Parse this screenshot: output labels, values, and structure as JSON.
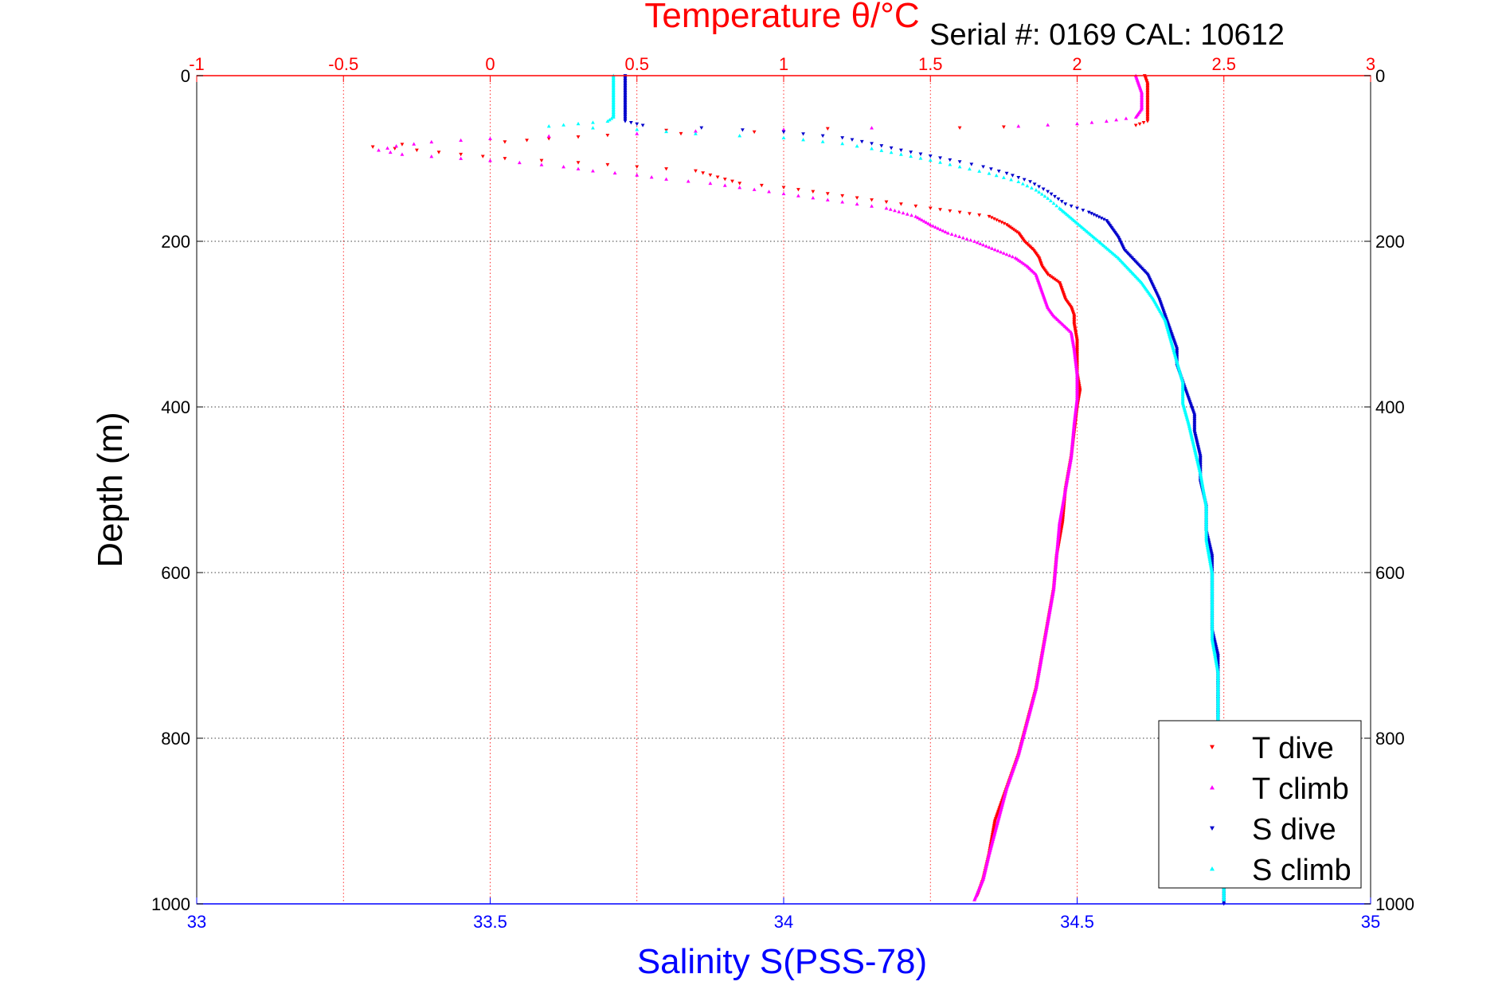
{
  "chart_data": {
    "type": "scatter",
    "title": "Temperature θ/°C",
    "subtitle": "Serial #: 0169 CAL: 10612",
    "xlabel": "Salinity S(PSS-78)",
    "ylabel": "Depth (m)",
    "x_bottom": {
      "label": "Salinity S(PSS-78)",
      "lim": [
        33,
        35
      ],
      "ticks": [
        "33",
        "33.5",
        "34",
        "34.5",
        "35"
      ],
      "color": "#0000ff"
    },
    "x_top": {
      "label": "Temperature θ/°C",
      "lim": [
        -1,
        3
      ],
      "ticks": [
        "-1",
        "-0.5",
        "0",
        "0.5",
        "1",
        "1.5",
        "2",
        "2.5",
        "3"
      ],
      "color": "#ff0000"
    },
    "y": {
      "lim": [
        0,
        1000
      ],
      "reversed": true,
      "ticks": [
        "0",
        "200",
        "400",
        "600",
        "800",
        "1000"
      ]
    },
    "grid": true,
    "legend_placement": "bottom-right",
    "series": [
      {
        "name": "T dive",
        "axis": "temperature",
        "color": "#ff0000",
        "marker": "triangle-down",
        "points": [
          [
            2.23,
            0
          ],
          [
            2.24,
            10
          ],
          [
            2.24,
            20
          ],
          [
            2.24,
            30
          ],
          [
            2.24,
            40
          ],
          [
            2.24,
            50
          ],
          [
            2.24,
            55
          ],
          [
            2.2,
            60
          ],
          [
            1.75,
            62
          ],
          [
            1.6,
            63
          ],
          [
            1.15,
            64
          ],
          [
            0.6,
            66
          ],
          [
            0.9,
            68
          ],
          [
            0.4,
            72
          ],
          [
            0.2,
            76
          ],
          [
            0.05,
            80
          ],
          [
            -0.3,
            83
          ],
          [
            -0.4,
            86
          ],
          [
            -0.25,
            90
          ],
          [
            -0.1,
            95
          ],
          [
            0.05,
            100
          ],
          [
            0.3,
            105
          ],
          [
            0.5,
            110
          ],
          [
            0.7,
            115
          ],
          [
            0.75,
            120
          ],
          [
            0.8,
            125
          ],
          [
            0.85,
            130
          ],
          [
            1.0,
            135
          ],
          [
            1.1,
            140
          ],
          [
            1.2,
            145
          ],
          [
            1.3,
            150
          ],
          [
            1.4,
            155
          ],
          [
            1.5,
            160
          ],
          [
            1.6,
            165
          ],
          [
            1.7,
            170
          ],
          [
            1.76,
            180
          ],
          [
            1.8,
            190
          ],
          [
            1.82,
            200
          ],
          [
            1.85,
            210
          ],
          [
            1.87,
            220
          ],
          [
            1.88,
            230
          ],
          [
            1.9,
            240
          ],
          [
            1.94,
            250
          ],
          [
            1.95,
            260
          ],
          [
            1.96,
            270
          ],
          [
            1.98,
            280
          ],
          [
            1.99,
            290
          ],
          [
            1.99,
            300
          ],
          [
            2.0,
            320
          ],
          [
            2.0,
            340
          ],
          [
            2.0,
            360
          ],
          [
            2.01,
            380
          ],
          [
            2.0,
            400
          ],
          [
            1.99,
            430
          ],
          [
            1.98,
            460
          ],
          [
            1.96,
            500
          ],
          [
            1.95,
            540
          ],
          [
            1.93,
            580
          ],
          [
            1.92,
            620
          ],
          [
            1.9,
            660
          ],
          [
            1.88,
            700
          ],
          [
            1.86,
            740
          ],
          [
            1.83,
            780
          ],
          [
            1.8,
            820
          ],
          [
            1.76,
            860
          ],
          [
            1.72,
            900
          ],
          [
            1.7,
            940
          ],
          [
            1.68,
            970
          ],
          [
            1.66,
            990
          ]
        ]
      },
      {
        "name": "T climb",
        "axis": "temperature",
        "color": "#ff00ff",
        "marker": "triangle-up",
        "points": [
          [
            2.2,
            0
          ],
          [
            2.21,
            10
          ],
          [
            2.22,
            20
          ],
          [
            2.22,
            30
          ],
          [
            2.22,
            40
          ],
          [
            2.2,
            50
          ],
          [
            2.1,
            55
          ],
          [
            2.0,
            58
          ],
          [
            1.8,
            61
          ],
          [
            1.3,
            63
          ],
          [
            1.0,
            65
          ],
          [
            0.7,
            67
          ],
          [
            0.5,
            70
          ],
          [
            0.2,
            73
          ],
          [
            0.0,
            76
          ],
          [
            -0.2,
            80
          ],
          [
            -0.32,
            85
          ],
          [
            -0.38,
            90
          ],
          [
            -0.3,
            95
          ],
          [
            -0.1,
            100
          ],
          [
            0.1,
            105
          ],
          [
            0.25,
            110
          ],
          [
            0.35,
            115
          ],
          [
            0.5,
            120
          ],
          [
            0.6,
            125
          ],
          [
            0.75,
            130
          ],
          [
            0.85,
            135
          ],
          [
            0.95,
            140
          ],
          [
            1.05,
            145
          ],
          [
            1.15,
            150
          ],
          [
            1.25,
            155
          ],
          [
            1.35,
            160
          ],
          [
            1.45,
            170
          ],
          [
            1.5,
            180
          ],
          [
            1.56,
            190
          ],
          [
            1.65,
            200
          ],
          [
            1.72,
            210
          ],
          [
            1.79,
            220
          ],
          [
            1.83,
            230
          ],
          [
            1.86,
            240
          ],
          [
            1.87,
            250
          ],
          [
            1.88,
            260
          ],
          [
            1.89,
            270
          ],
          [
            1.9,
            280
          ],
          [
            1.92,
            290
          ],
          [
            1.95,
            300
          ],
          [
            1.98,
            310
          ],
          [
            1.99,
            330
          ],
          [
            2.0,
            360
          ],
          [
            2.0,
            390
          ],
          [
            1.99,
            420
          ],
          [
            1.98,
            460
          ],
          [
            1.96,
            500
          ],
          [
            1.94,
            540
          ],
          [
            1.93,
            580
          ],
          [
            1.92,
            620
          ],
          [
            1.9,
            660
          ],
          [
            1.88,
            700
          ],
          [
            1.86,
            740
          ],
          [
            1.83,
            780
          ],
          [
            1.8,
            820
          ],
          [
            1.76,
            860
          ],
          [
            1.73,
            900
          ],
          [
            1.7,
            940
          ],
          [
            1.68,
            970
          ],
          [
            1.65,
            995
          ]
        ]
      },
      {
        "name": "S dive",
        "axis": "salinity",
        "color": "#0000cc",
        "marker": "triangle-down",
        "points": [
          [
            33.73,
            0
          ],
          [
            33.73,
            10
          ],
          [
            33.73,
            20
          ],
          [
            33.73,
            30
          ],
          [
            33.73,
            40
          ],
          [
            33.73,
            50
          ],
          [
            33.73,
            55
          ],
          [
            33.76,
            60
          ],
          [
            33.86,
            63
          ],
          [
            34.0,
            68
          ],
          [
            34.1,
            75
          ],
          [
            34.15,
            82
          ],
          [
            34.2,
            90
          ],
          [
            34.25,
            97
          ],
          [
            34.3,
            104
          ],
          [
            34.34,
            110
          ],
          [
            34.38,
            118
          ],
          [
            34.42,
            128
          ],
          [
            34.45,
            140
          ],
          [
            34.48,
            155
          ],
          [
            34.52,
            165
          ],
          [
            34.55,
            175
          ],
          [
            34.56,
            185
          ],
          [
            34.57,
            195
          ],
          [
            34.58,
            210
          ],
          [
            34.6,
            225
          ],
          [
            34.62,
            240
          ],
          [
            34.63,
            255
          ],
          [
            34.64,
            270
          ],
          [
            34.65,
            290
          ],
          [
            34.66,
            310
          ],
          [
            34.67,
            330
          ],
          [
            34.67,
            350
          ],
          [
            34.68,
            370
          ],
          [
            34.69,
            390
          ],
          [
            34.7,
            410
          ],
          [
            34.7,
            430
          ],
          [
            34.71,
            460
          ],
          [
            34.71,
            490
          ],
          [
            34.72,
            520
          ],
          [
            34.72,
            550
          ],
          [
            34.73,
            580
          ],
          [
            34.73,
            610
          ],
          [
            34.73,
            640
          ],
          [
            34.73,
            670
          ],
          [
            34.74,
            700
          ],
          [
            34.74,
            740
          ],
          [
            34.74,
            780
          ],
          [
            34.74,
            820
          ],
          [
            34.74,
            860
          ],
          [
            34.75,
            900
          ],
          [
            34.75,
            940
          ],
          [
            34.75,
            980
          ],
          [
            34.75,
            1000
          ]
        ]
      },
      {
        "name": "S climb",
        "axis": "salinity",
        "color": "#00ffff",
        "marker": "triangle-up",
        "points": [
          [
            33.71,
            0
          ],
          [
            33.71,
            10
          ],
          [
            33.71,
            20
          ],
          [
            33.71,
            30
          ],
          [
            33.71,
            40
          ],
          [
            33.71,
            50
          ],
          [
            33.7,
            55
          ],
          [
            33.65,
            58
          ],
          [
            33.6,
            61
          ],
          [
            33.75,
            65
          ],
          [
            33.85,
            70
          ],
          [
            34.0,
            75
          ],
          [
            34.1,
            82
          ],
          [
            34.15,
            88
          ],
          [
            34.2,
            95
          ],
          [
            34.25,
            102
          ],
          [
            34.3,
            110
          ],
          [
            34.35,
            118
          ],
          [
            34.4,
            128
          ],
          [
            34.43,
            138
          ],
          [
            34.45,
            148
          ],
          [
            34.47,
            160
          ],
          [
            34.49,
            172
          ],
          [
            34.51,
            184
          ],
          [
            34.53,
            196
          ],
          [
            34.55,
            208
          ],
          [
            34.57,
            220
          ],
          [
            34.59,
            235
          ],
          [
            34.61,
            250
          ],
          [
            34.63,
            270
          ],
          [
            34.65,
            295
          ],
          [
            34.66,
            320
          ],
          [
            34.67,
            345
          ],
          [
            34.68,
            370
          ],
          [
            34.68,
            395
          ],
          [
            34.69,
            420
          ],
          [
            34.7,
            450
          ],
          [
            34.71,
            480
          ],
          [
            34.72,
            520
          ],
          [
            34.72,
            560
          ],
          [
            34.73,
            600
          ],
          [
            34.73,
            640
          ],
          [
            34.73,
            680
          ],
          [
            34.74,
            720
          ],
          [
            34.74,
            760
          ],
          [
            34.74,
            800
          ],
          [
            34.74,
            840
          ],
          [
            34.75,
            880
          ],
          [
            34.75,
            920
          ],
          [
            34.75,
            960
          ],
          [
            34.75,
            995
          ]
        ]
      }
    ]
  }
}
